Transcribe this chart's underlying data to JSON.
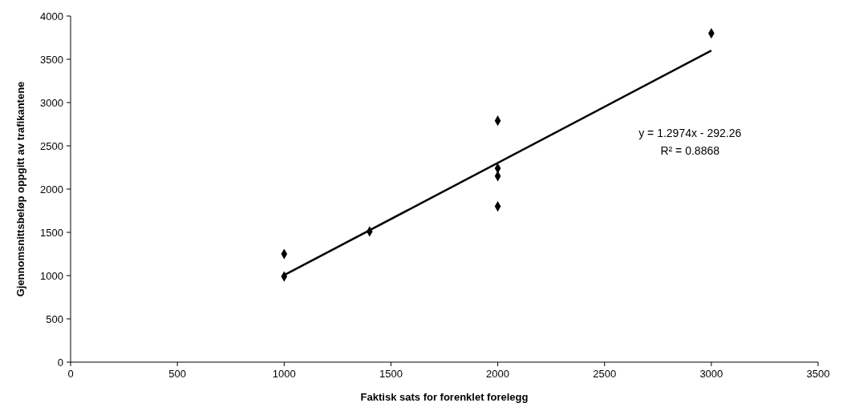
{
  "chart_data": {
    "type": "scatter",
    "xlabel": "Faktisk sats for forenklet forelegg",
    "ylabel": "Gjennomsnittsbeløp oppgitt av trafikantene",
    "xlim": [
      0,
      3500
    ],
    "xticks": [
      0,
      500,
      1000,
      1500,
      2000,
      2500,
      3000,
      3500
    ],
    "ylim": [
      0,
      4000
    ],
    "yticks": [
      0,
      500,
      1000,
      1500,
      2000,
      2500,
      3000,
      3500,
      4000
    ],
    "grid": false,
    "marker": "diamond",
    "series": [
      {
        "color": "#000000",
        "x": [
          1000,
          1000,
          1400,
          2000,
          2000,
          2000,
          2000,
          3000
        ],
        "values": [
          1250,
          990,
          1510,
          2790,
          2240,
          2150,
          1800,
          3800
        ]
      },
      {
        "type": "line",
        "color": "#000000",
        "x": [
          1000,
          3000
        ],
        "values": [
          1005,
          3600
        ],
        "marker": "none",
        "line_style": "solid"
      }
    ],
    "annotations": [
      "y = 1.2974x - 292.26",
      "R² = 0.8868"
    ]
  }
}
